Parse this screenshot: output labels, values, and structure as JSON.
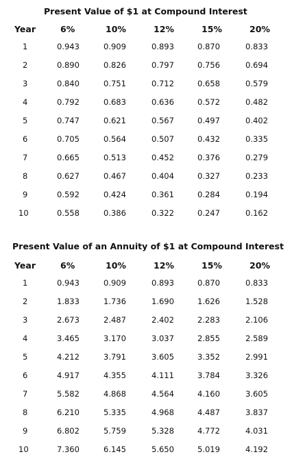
{
  "table1": {
    "title": "Present Value of $1 at Compound Interest",
    "headers": [
      "Year",
      "6%",
      "10%",
      "12%",
      "15%",
      "20%"
    ],
    "rows": [
      [
        "1",
        "0.943",
        "0.909",
        "0.893",
        "0.870",
        "0.833"
      ],
      [
        "2",
        "0.890",
        "0.826",
        "0.797",
        "0.756",
        "0.694"
      ],
      [
        "3",
        "0.840",
        "0.751",
        "0.712",
        "0.658",
        "0.579"
      ],
      [
        "4",
        "0.792",
        "0.683",
        "0.636",
        "0.572",
        "0.482"
      ],
      [
        "5",
        "0.747",
        "0.621",
        "0.567",
        "0.497",
        "0.402"
      ],
      [
        "6",
        "0.705",
        "0.564",
        "0.507",
        "0.432",
        "0.335"
      ],
      [
        "7",
        "0.665",
        "0.513",
        "0.452",
        "0.376",
        "0.279"
      ],
      [
        "8",
        "0.627",
        "0.467",
        "0.404",
        "0.327",
        "0.233"
      ],
      [
        "9",
        "0.592",
        "0.424",
        "0.361",
        "0.284",
        "0.194"
      ],
      [
        "10",
        "0.558",
        "0.386",
        "0.322",
        "0.247",
        "0.162"
      ]
    ]
  },
  "table2": {
    "title": "Present Value of an Annuity of $1 at Compound Interest",
    "headers": [
      "Year",
      "6%",
      "10%",
      "12%",
      "15%",
      "20%"
    ],
    "rows": [
      [
        "1",
        "0.943",
        "0.909",
        "0.893",
        "0.870",
        "0.833"
      ],
      [
        "2",
        "1.833",
        "1.736",
        "1.690",
        "1.626",
        "1.528"
      ],
      [
        "3",
        "2.673",
        "2.487",
        "2.402",
        "2.283",
        "2.106"
      ],
      [
        "4",
        "3.465",
        "3.170",
        "3.037",
        "2.855",
        "2.589"
      ],
      [
        "5",
        "4.212",
        "3.791",
        "3.605",
        "3.352",
        "2.991"
      ],
      [
        "6",
        "4.917",
        "4.355",
        "4.111",
        "3.784",
        "3.326"
      ],
      [
        "7",
        "5.582",
        "4.868",
        "4.564",
        "4.160",
        "3.605"
      ],
      [
        "8",
        "6.210",
        "5.335",
        "4.968",
        "4.487",
        "3.837"
      ],
      [
        "9",
        "6.802",
        "5.759",
        "5.328",
        "4.772",
        "4.031"
      ],
      [
        "10",
        "7.360",
        "6.145",
        "5.650",
        "5.019",
        "4.192"
      ]
    ]
  }
}
